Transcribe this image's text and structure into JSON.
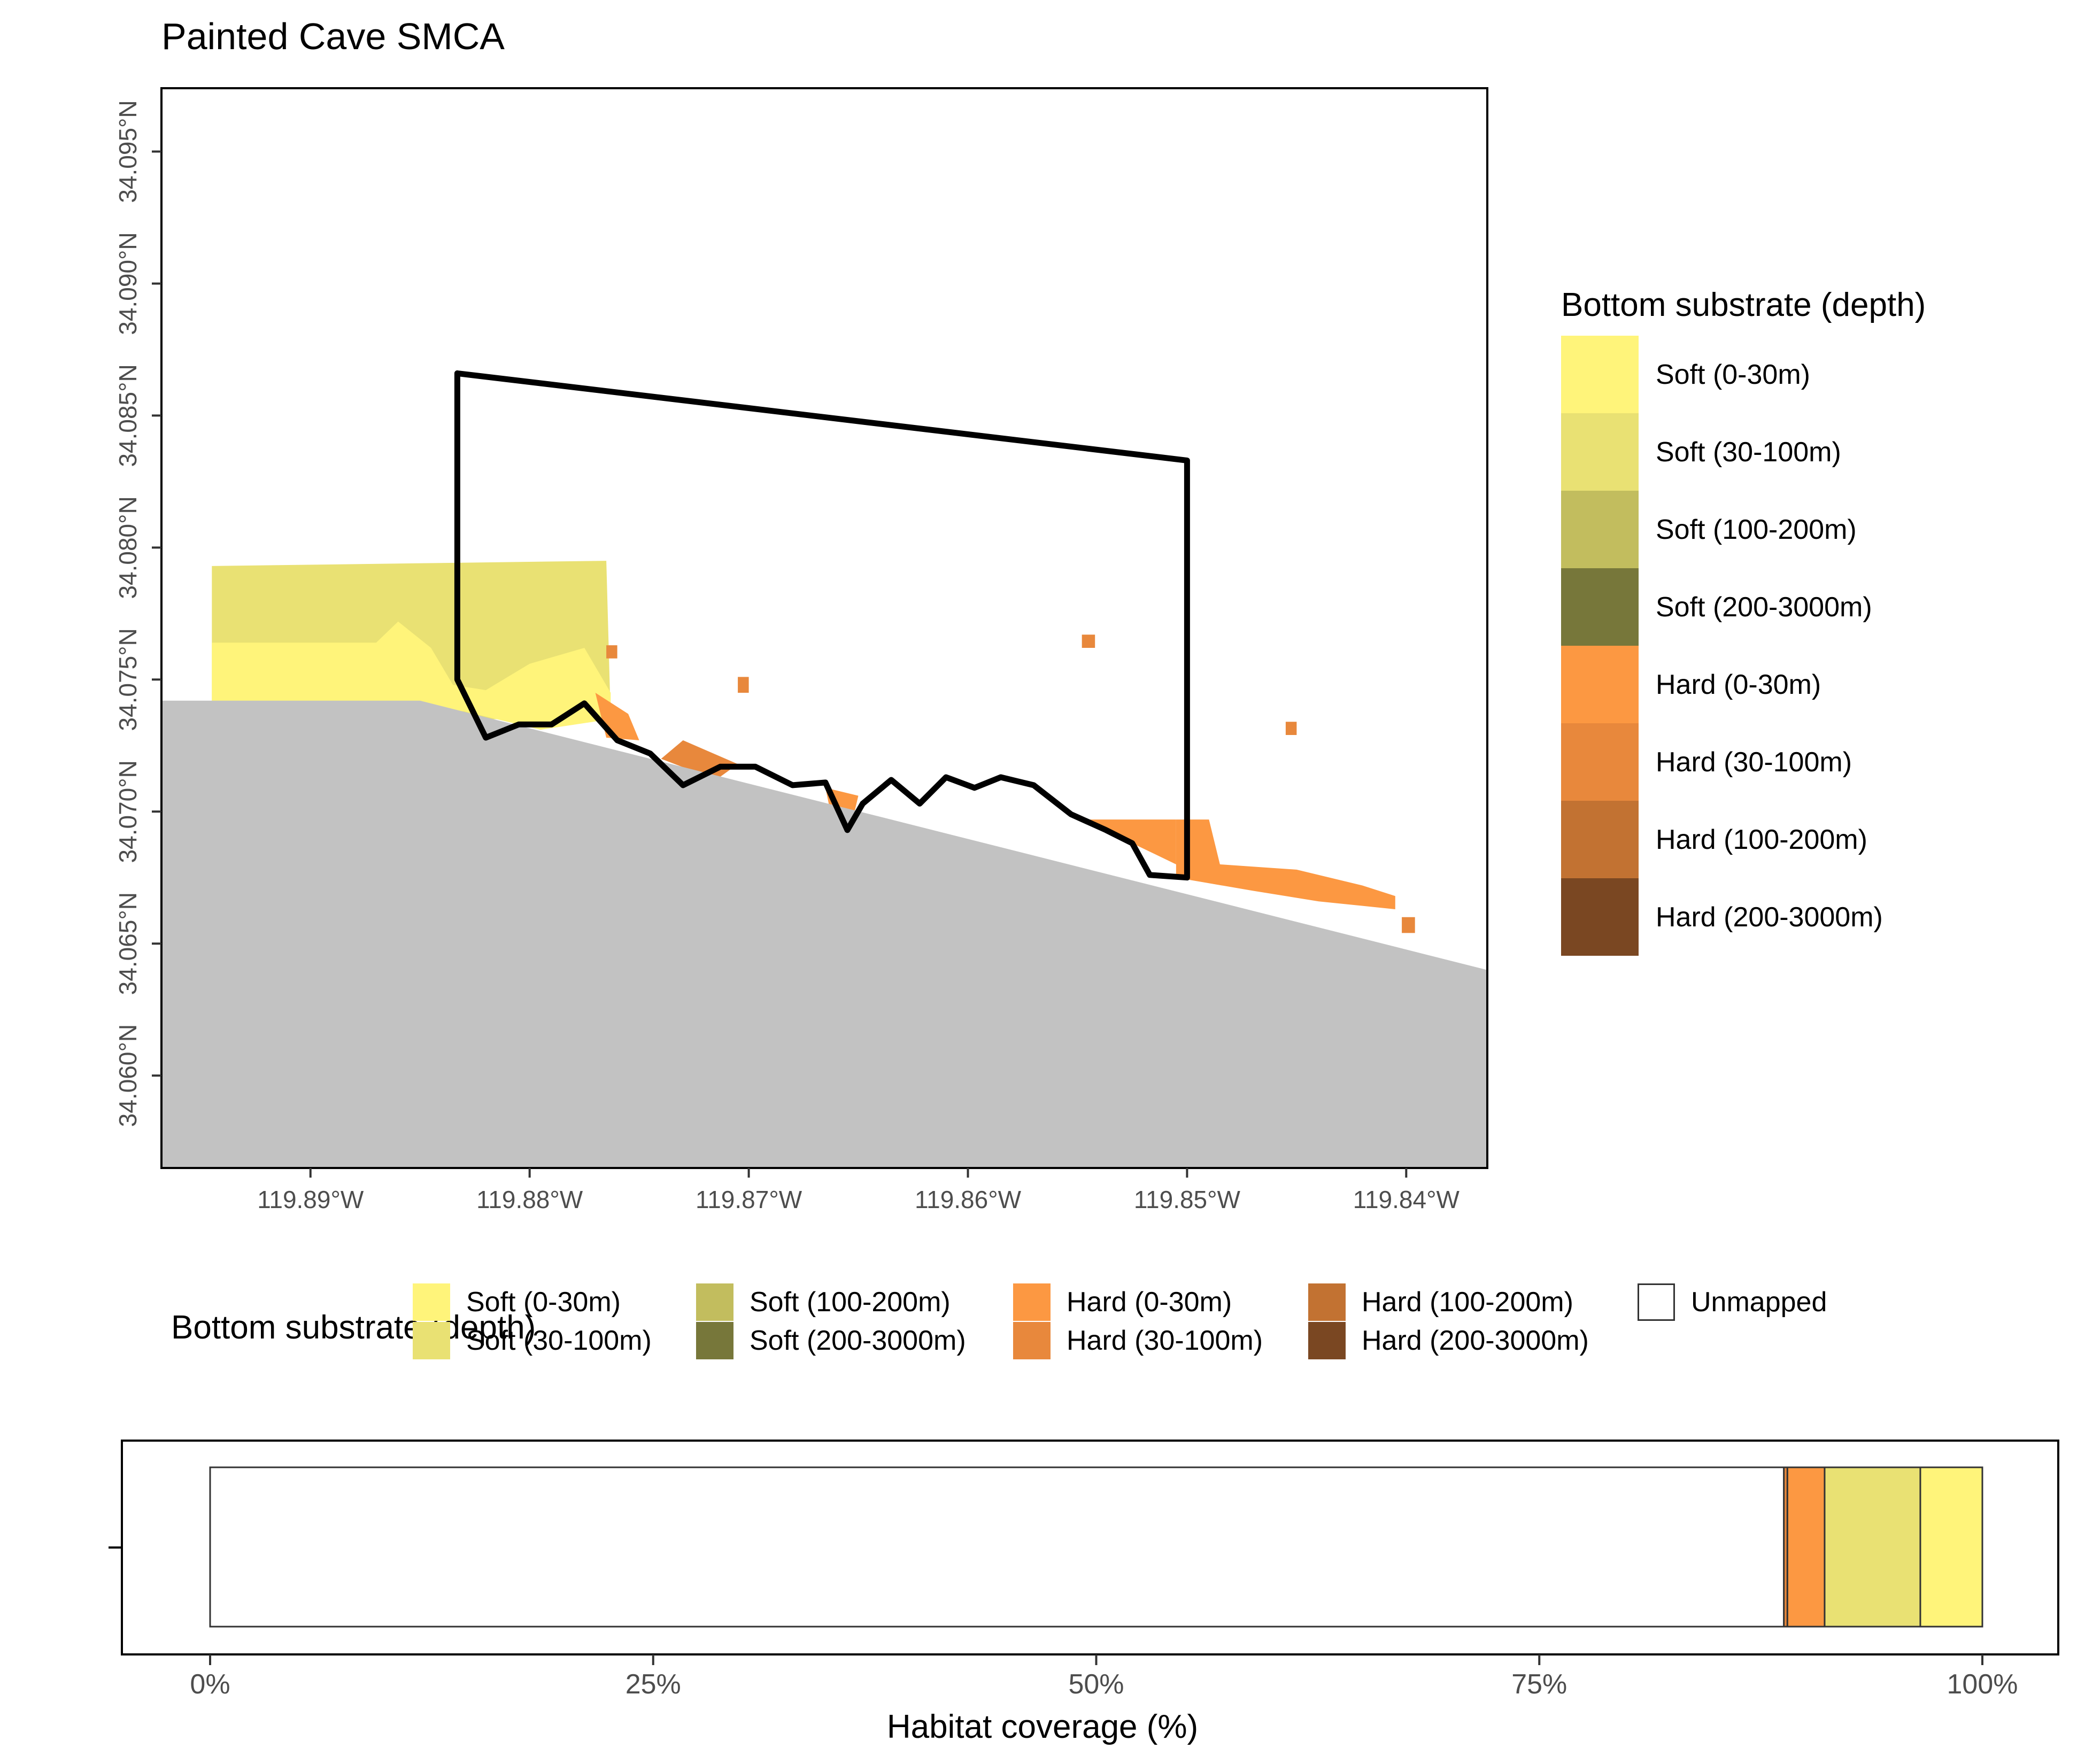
{
  "title": "Painted Cave SMCA",
  "colors": {
    "soft_0_30": "#FFF47A",
    "soft_30_100": "#E9E173",
    "soft_100_200": "#C2BD5E",
    "soft_200_3000": "#77773A",
    "hard_0_30": "#FC9842",
    "hard_30_100": "#E8883C",
    "hard_100_200": "#C27232",
    "hard_200_3000": "#7A4722",
    "land": "#C2C2C2",
    "boundary": "#000000",
    "unmapped": "#FFFFFF"
  },
  "map": {
    "x_ticks": [
      {
        "value": -119.89,
        "label": "119.89°W"
      },
      {
        "value": -119.88,
        "label": "119.88°W"
      },
      {
        "value": -119.87,
        "label": "119.87°W"
      },
      {
        "value": -119.86,
        "label": "119.86°W"
      },
      {
        "value": -119.85,
        "label": "119.85°W"
      },
      {
        "value": -119.84,
        "label": "119.84°W"
      }
    ],
    "y_ticks": [
      {
        "value": 34.06,
        "label": "34.060°N"
      },
      {
        "value": 34.065,
        "label": "34.065°N"
      },
      {
        "value": 34.07,
        "label": "34.070°N"
      },
      {
        "value": 34.075,
        "label": "34.075°N"
      },
      {
        "value": 34.08,
        "label": "34.080°N"
      },
      {
        "value": 34.085,
        "label": "34.085°N"
      },
      {
        "value": 34.09,
        "label": "34.090°N"
      },
      {
        "value": 34.095,
        "label": "34.095°N"
      }
    ],
    "xlim": [
      -119.8968,
      -119.8363
    ],
    "ylim": [
      34.0565,
      34.0974
    ],
    "mpa_boundary": [
      [
        -119.8833,
        34.0866
      ],
      [
        -119.85,
        34.0833
      ],
      [
        -119.85,
        34.0675
      ],
      [
        -119.8517,
        34.0676
      ],
      [
        -119.8525,
        34.0688
      ],
      [
        -119.8537,
        34.0693
      ],
      [
        -119.8553,
        34.0699
      ],
      [
        -119.857,
        34.071
      ],
      [
        -119.8585,
        34.0713
      ],
      [
        -119.8597,
        34.0709
      ],
      [
        -119.861,
        34.0713
      ],
      [
        -119.8622,
        34.0703
      ],
      [
        -119.8635,
        34.0712
      ],
      [
        -119.8648,
        34.0703
      ],
      [
        -119.8655,
        34.0693
      ],
      [
        -119.8665,
        34.0711
      ],
      [
        -119.868,
        34.071
      ],
      [
        -119.8697,
        34.0717
      ],
      [
        -119.8713,
        34.0717
      ],
      [
        -119.873,
        34.071
      ],
      [
        -119.8745,
        34.0722
      ],
      [
        -119.876,
        34.0727
      ],
      [
        -119.8775,
        34.0741
      ],
      [
        -119.879,
        34.0733
      ],
      [
        -119.8805,
        34.0733
      ],
      [
        -119.882,
        34.0728
      ],
      [
        -119.8833,
        34.075
      ],
      [
        -119.8833,
        34.0866
      ]
    ],
    "land_polygon": [
      [
        -119.8968,
        34.0742
      ],
      [
        -119.885,
        34.0742
      ],
      [
        -119.8363,
        34.064
      ],
      [
        -119.8363,
        34.0565
      ],
      [
        -119.8968,
        34.0565
      ]
    ],
    "habitat_polygons": [
      {
        "class": "soft_30_100",
        "points": [
          [
            -119.8945,
            34.0793
          ],
          [
            -119.8765,
            34.0795
          ],
          [
            -119.8763,
            34.0735
          ],
          [
            -119.8945,
            34.0735
          ]
        ]
      },
      {
        "class": "soft_0_30",
        "points": [
          [
            -119.8945,
            34.0764
          ],
          [
            -119.887,
            34.0764
          ],
          [
            -119.886,
            34.0772
          ],
          [
            -119.8845,
            34.0762
          ],
          [
            -119.8835,
            34.0748
          ],
          [
            -119.882,
            34.0746
          ],
          [
            -119.88,
            34.0756
          ],
          [
            -119.8775,
            34.0762
          ],
          [
            -119.8763,
            34.0745
          ],
          [
            -119.8763,
            34.0735
          ],
          [
            -119.8795,
            34.0731
          ],
          [
            -119.883,
            34.0738
          ],
          [
            -119.888,
            34.0741
          ],
          [
            -119.892,
            34.0735
          ],
          [
            -119.8945,
            34.0733
          ]
        ]
      },
      {
        "class": "hard_0_30",
        "points": [
          [
            -119.8505,
            34.0697
          ],
          [
            -119.849,
            34.0697
          ],
          [
            -119.8485,
            34.068
          ],
          [
            -119.845,
            34.0678
          ],
          [
            -119.842,
            34.0672
          ],
          [
            -119.8405,
            34.0668
          ],
          [
            -119.8405,
            34.0663
          ],
          [
            -119.844,
            34.0666
          ],
          [
            -119.847,
            34.067
          ],
          [
            -119.8505,
            34.0675
          ]
        ]
      },
      {
        "class": "hard_0_30",
        "points": [
          [
            -119.8545,
            34.0697
          ],
          [
            -119.8505,
            34.0697
          ],
          [
            -119.8505,
            34.068
          ],
          [
            -119.8525,
            34.0688
          ]
        ]
      },
      {
        "class": "hard_0_30",
        "points": [
          [
            -119.8665,
            34.0709
          ],
          [
            -119.865,
            34.0706
          ],
          [
            -119.8652,
            34.0699
          ],
          [
            -119.8663,
            34.0701
          ]
        ]
      },
      {
        "class": "hard_30_100",
        "points": [
          [
            -119.873,
            34.0727
          ],
          [
            -119.8705,
            34.0718
          ],
          [
            -119.8715,
            34.0712
          ],
          [
            -119.874,
            34.072
          ]
        ]
      },
      {
        "class": "hard_0_30",
        "points": [
          [
            -119.877,
            34.0745
          ],
          [
            -119.8755,
            34.0737
          ],
          [
            -119.875,
            34.0727
          ],
          [
            -119.8765,
            34.0728
          ]
        ]
      },
      {
        "class": "hard_30_100",
        "points": [
          [
            -119.8705,
            34.0751
          ],
          [
            -119.87,
            34.0751
          ],
          [
            -119.87,
            34.0745
          ],
          [
            -119.8705,
            34.0745
          ]
        ]
      },
      {
        "class": "hard_30_100",
        "points": [
          [
            -119.8548,
            34.0767
          ],
          [
            -119.8542,
            34.0767
          ],
          [
            -119.8542,
            34.0762
          ],
          [
            -119.8548,
            34.0762
          ]
        ]
      },
      {
        "class": "hard_30_100",
        "points": [
          [
            -119.8455,
            34.0734
          ],
          [
            -119.845,
            34.0734
          ],
          [
            -119.845,
            34.0729
          ],
          [
            -119.8455,
            34.0729
          ]
        ]
      },
      {
        "class": "hard_30_100",
        "points": [
          [
            -119.8402,
            34.066
          ],
          [
            -119.8396,
            34.066
          ],
          [
            -119.8396,
            34.0654
          ],
          [
            -119.8402,
            34.0654
          ]
        ]
      },
      {
        "class": "hard_30_100",
        "points": [
          [
            -119.8765,
            34.0763
          ],
          [
            -119.876,
            34.0763
          ],
          [
            -119.876,
            34.0758
          ],
          [
            -119.8765,
            34.0758
          ]
        ]
      }
    ]
  },
  "legend_right": {
    "title": "Bottom substrate (depth)",
    "items": [
      {
        "key": "soft_0_30",
        "label": "Soft (0-30m)"
      },
      {
        "key": "soft_30_100",
        "label": "Soft (30-100m)"
      },
      {
        "key": "soft_100_200",
        "label": "Soft (100-200m)"
      },
      {
        "key": "soft_200_3000",
        "label": "Soft (200-3000m)"
      },
      {
        "key": "hard_0_30",
        "label": "Hard (0-30m)"
      },
      {
        "key": "hard_30_100",
        "label": "Hard (30-100m)"
      },
      {
        "key": "hard_100_200",
        "label": "Hard (100-200m)"
      },
      {
        "key": "hard_200_3000",
        "label": "Hard (200-3000m)"
      }
    ]
  },
  "legend_bottom": {
    "title": "Bottom substrate (depth)",
    "items": [
      {
        "key": "soft_0_30",
        "label": "Soft (0-30m)"
      },
      {
        "key": "soft_30_100",
        "label": "Soft (30-100m)"
      },
      {
        "key": "soft_100_200",
        "label": "Soft (100-200m)"
      },
      {
        "key": "soft_200_3000",
        "label": "Soft (200-3000m)"
      },
      {
        "key": "hard_0_30",
        "label": "Hard (0-30m)"
      },
      {
        "key": "hard_30_100",
        "label": "Hard (30-100m)"
      },
      {
        "key": "hard_100_200",
        "label": "Hard (100-200m)"
      },
      {
        "key": "hard_200_3000",
        "label": "Hard (200-3000m)"
      },
      {
        "key": "unmapped",
        "label": "Unmapped"
      }
    ]
  },
  "chart_data": {
    "type": "bar",
    "orientation": "horizontal",
    "stacked": true,
    "xlabel": "Habitat coverage (%)",
    "ylabel": "",
    "xlim": [
      0,
      100
    ],
    "x_ticks": [
      {
        "value": 0,
        "label": "0%"
      },
      {
        "value": 25,
        "label": "25%"
      },
      {
        "value": 50,
        "label": "50%"
      },
      {
        "value": 75,
        "label": "75%"
      },
      {
        "value": 100,
        "label": "100%"
      }
    ],
    "series": [
      {
        "key": "unmapped",
        "name": "Unmapped",
        "value": 88.8
      },
      {
        "key": "hard_30_100",
        "name": "Hard (30-100m)",
        "value": 0.2
      },
      {
        "key": "hard_0_30",
        "name": "Hard (0-30m)",
        "value": 2.1
      },
      {
        "key": "soft_30_100",
        "name": "Soft (30-100m)",
        "value": 5.4
      },
      {
        "key": "soft_0_30",
        "name": "Soft (0-30m)",
        "value": 3.5
      }
    ]
  }
}
